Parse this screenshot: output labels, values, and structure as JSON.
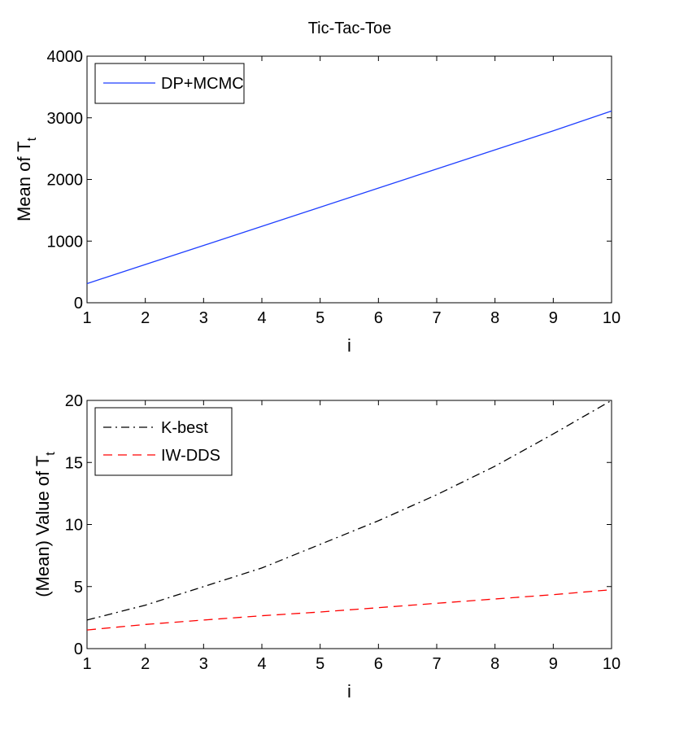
{
  "figure": {
    "title": "Tic-Tac-Toe"
  },
  "chart_data": [
    {
      "type": "line",
      "title": "Tic-Tac-Toe",
      "xlabel": "i",
      "ylabel": "Mean of T",
      "ylabel_subscript": "t",
      "xlim": [
        1,
        10
      ],
      "ylim": [
        0,
        4000
      ],
      "xticks": [
        1,
        2,
        3,
        4,
        5,
        6,
        7,
        8,
        9,
        10
      ],
      "yticks": [
        0,
        1000,
        2000,
        3000,
        4000
      ],
      "x": [
        1,
        2,
        3,
        4,
        5,
        6,
        7,
        8,
        9,
        10
      ],
      "series": [
        {
          "name": "DP+MCMC",
          "color": "#1f3fff",
          "dash": "solid",
          "values": [
            310,
            620,
            930,
            1240,
            1550,
            1860,
            2170,
            2480,
            2790,
            3110
          ]
        }
      ],
      "legend": "top-left",
      "grid": false
    },
    {
      "type": "line",
      "title": "",
      "xlabel": "i",
      "ylabel": "(Mean) Value of T",
      "ylabel_subscript": "t",
      "xlim": [
        1,
        10
      ],
      "ylim": [
        0,
        20
      ],
      "xticks": [
        1,
        2,
        3,
        4,
        5,
        6,
        7,
        8,
        9,
        10
      ],
      "yticks": [
        0,
        5,
        10,
        15,
        20
      ],
      "x": [
        1,
        2,
        3,
        4,
        5,
        6,
        7,
        8,
        9,
        10
      ],
      "series": [
        {
          "name": "K-best",
          "color": "#000000",
          "dash": "dashdot",
          "values": [
            2.3,
            3.5,
            5.0,
            6.5,
            8.4,
            10.3,
            12.4,
            14.7,
            17.3,
            20.0
          ]
        },
        {
          "name": "IW-DDS",
          "color": "#ff0000",
          "dash": "dashed",
          "values": [
            1.5,
            1.95,
            2.3,
            2.65,
            2.95,
            3.3,
            3.65,
            4.0,
            4.35,
            4.75
          ]
        }
      ],
      "legend": "top-left",
      "grid": false
    }
  ]
}
